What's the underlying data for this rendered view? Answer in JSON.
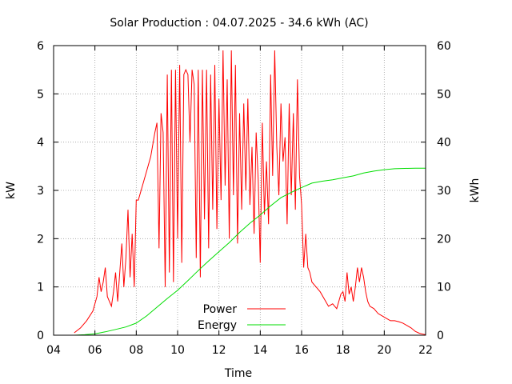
{
  "chart_data": {
    "type": "line",
    "title": "Solar Production : 04.07.2025 - 34.6 kWh (AC)",
    "xlabel": "Time",
    "ylabel_left": "kW",
    "ylabel_right": "kWh",
    "xlim": [
      4,
      22
    ],
    "ylim_left": [
      0,
      6
    ],
    "ylim_right": [
      0,
      60
    ],
    "x_ticks": [
      "04",
      "06",
      "08",
      "10",
      "12",
      "14",
      "16",
      "18",
      "20",
      "22"
    ],
    "y_ticks_left": [
      "0",
      "1",
      "2",
      "3",
      "4",
      "5",
      "6"
    ],
    "y_ticks_right": [
      "0",
      "10",
      "20",
      "30",
      "40",
      "50",
      "60"
    ],
    "grid": true,
    "legend_position": "bottom-center",
    "series": [
      {
        "name": "Power",
        "axis": "left",
        "color": "#ff0000",
        "x": [
          5.0,
          5.3,
          5.6,
          5.9,
          6.1,
          6.2,
          6.3,
          6.4,
          6.5,
          6.6,
          6.8,
          6.9,
          7.0,
          7.1,
          7.3,
          7.4,
          7.5,
          7.6,
          7.7,
          7.8,
          7.9,
          8.0,
          8.1,
          8.3,
          8.5,
          8.7,
          8.9,
          9.0,
          9.1,
          9.2,
          9.3,
          9.4,
          9.5,
          9.6,
          9.7,
          9.8,
          9.9,
          10.0,
          10.1,
          10.2,
          10.3,
          10.4,
          10.5,
          10.6,
          10.7,
          10.8,
          10.9,
          11.0,
          11.1,
          11.2,
          11.3,
          11.4,
          11.5,
          11.6,
          11.7,
          11.8,
          11.9,
          12.0,
          12.1,
          12.2,
          12.3,
          12.4,
          12.5,
          12.6,
          12.7,
          12.8,
          12.9,
          13.0,
          13.1,
          13.2,
          13.3,
          13.4,
          13.5,
          13.6,
          13.7,
          13.8,
          13.9,
          14.0,
          14.1,
          14.2,
          14.3,
          14.4,
          14.5,
          14.6,
          14.7,
          14.8,
          14.9,
          15.0,
          15.1,
          15.2,
          15.3,
          15.4,
          15.5,
          15.6,
          15.7,
          15.8,
          15.9,
          16.0,
          16.1,
          16.2,
          16.3,
          16.4,
          16.5,
          16.7,
          16.9,
          17.1,
          17.3,
          17.5,
          17.7,
          17.9,
          18.0,
          18.1,
          18.2,
          18.3,
          18.4,
          18.5,
          18.6,
          18.7,
          18.8,
          18.9,
          19.0,
          19.1,
          19.2,
          19.3,
          19.5,
          19.7,
          19.9,
          20.1,
          20.3,
          20.5,
          20.7,
          20.9,
          21.1,
          21.3,
          21.5,
          21.7,
          21.9,
          22.0
        ],
        "y": [
          0.05,
          0.15,
          0.3,
          0.5,
          0.8,
          1.2,
          0.9,
          1.1,
          1.4,
          0.8,
          0.6,
          0.9,
          1.3,
          0.7,
          1.9,
          1.0,
          1.6,
          2.6,
          1.2,
          2.1,
          1.0,
          2.8,
          2.8,
          3.1,
          3.4,
          3.7,
          4.2,
          4.4,
          1.8,
          4.6,
          4.2,
          1.0,
          5.4,
          1.3,
          5.5,
          1.1,
          5.5,
          2.0,
          5.6,
          1.5,
          5.4,
          5.5,
          5.4,
          4.0,
          5.5,
          5.2,
          1.6,
          5.5,
          1.2,
          5.5,
          2.4,
          5.5,
          1.8,
          5.4,
          2.6,
          5.6,
          2.2,
          4.9,
          2.8,
          5.9,
          3.1,
          5.3,
          2.0,
          5.9,
          2.9,
          5.6,
          1.9,
          4.6,
          2.6,
          4.8,
          3.0,
          4.9,
          2.7,
          3.9,
          2.1,
          4.2,
          3.2,
          1.5,
          4.4,
          2.5,
          3.6,
          2.3,
          5.4,
          3.3,
          5.9,
          3.9,
          2.9,
          4.8,
          3.6,
          4.1,
          2.3,
          4.8,
          2.9,
          4.6,
          2.6,
          5.3,
          3.3,
          2.7,
          1.4,
          2.1,
          1.4,
          1.3,
          1.1,
          1.0,
          0.9,
          0.75,
          0.6,
          0.65,
          0.55,
          0.85,
          0.9,
          0.7,
          1.3,
          0.85,
          1.0,
          0.7,
          1.0,
          1.4,
          1.1,
          1.4,
          1.2,
          0.9,
          0.7,
          0.6,
          0.55,
          0.45,
          0.4,
          0.35,
          0.3,
          0.3,
          0.28,
          0.25,
          0.2,
          0.15,
          0.08,
          0.04,
          0.02,
          0.01
        ]
      },
      {
        "name": "Energy",
        "axis": "right",
        "color": "#00dd00",
        "x": [
          5.0,
          5.5,
          6.0,
          6.5,
          7.0,
          7.5,
          8.0,
          8.5,
          9.0,
          9.5,
          10.0,
          10.5,
          11.0,
          11.5,
          12.0,
          12.5,
          13.0,
          13.5,
          14.0,
          14.5,
          15.0,
          15.5,
          16.0,
          16.5,
          17.0,
          17.5,
          18.0,
          18.5,
          19.0,
          19.5,
          20.0,
          20.5,
          21.0,
          21.5,
          22.0
        ],
        "y": [
          0.0,
          0.1,
          0.3,
          0.7,
          1.2,
          1.7,
          2.5,
          4.0,
          5.8,
          7.6,
          9.3,
          11.3,
          13.4,
          15.4,
          17.3,
          19.2,
          21.3,
          23.2,
          24.9,
          26.8,
          28.5,
          29.6,
          30.6,
          31.5,
          31.9,
          32.2,
          32.6,
          33.0,
          33.6,
          34.0,
          34.3,
          34.5,
          34.55,
          34.6,
          34.6
        ]
      }
    ]
  }
}
